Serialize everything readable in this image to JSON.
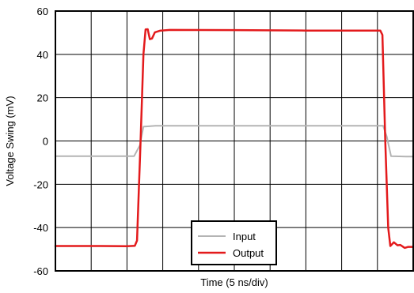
{
  "chart_data": {
    "type": "line",
    "xlabel": "Time (5 ns/div)",
    "ylabel": "Voltage Swing (mV)",
    "xlim": [
      0,
      50
    ],
    "ylim": [
      -60,
      60
    ],
    "x_divisions": 10,
    "y_ticks": [
      -60,
      -40,
      -20,
      0,
      20,
      40,
      60
    ],
    "grid": true,
    "legend_position": "bottom-center",
    "series": [
      {
        "name": "Input",
        "color": "#b4b4b4",
        "points": [
          [
            0,
            -7
          ],
          [
            6,
            -7
          ],
          [
            11.0,
            -7
          ],
          [
            11.8,
            -2
          ],
          [
            12.3,
            6.6
          ],
          [
            14,
            7
          ],
          [
            20,
            7
          ],
          [
            30,
            7
          ],
          [
            40,
            7
          ],
          [
            45.8,
            7
          ],
          [
            46.3,
            2
          ],
          [
            46.9,
            -7
          ],
          [
            49,
            -7.2
          ],
          [
            50,
            -7.2
          ]
        ]
      },
      {
        "name": "Output",
        "color": "#e31a1c",
        "points": [
          [
            0,
            -48.5
          ],
          [
            5,
            -48.5
          ],
          [
            10,
            -48.6
          ],
          [
            11.1,
            -48.4
          ],
          [
            11.4,
            -46
          ],
          [
            11.9,
            0
          ],
          [
            12.3,
            40
          ],
          [
            12.6,
            51.5
          ],
          [
            12.9,
            51.6
          ],
          [
            13.2,
            47
          ],
          [
            13.5,
            47.3
          ],
          [
            13.9,
            50.2
          ],
          [
            14.6,
            50.9
          ],
          [
            16,
            51.3
          ],
          [
            25,
            51.2
          ],
          [
            35,
            51
          ],
          [
            44,
            51
          ],
          [
            45.4,
            51
          ],
          [
            45.7,
            49
          ],
          [
            46.1,
            0
          ],
          [
            46.5,
            -40
          ],
          [
            46.8,
            -48.5
          ],
          [
            47.3,
            -46.8
          ],
          [
            47.8,
            -48.2
          ],
          [
            48.2,
            -48
          ],
          [
            48.8,
            -49.4
          ],
          [
            49.3,
            -48.9
          ],
          [
            50,
            -48.9
          ]
        ]
      }
    ]
  }
}
